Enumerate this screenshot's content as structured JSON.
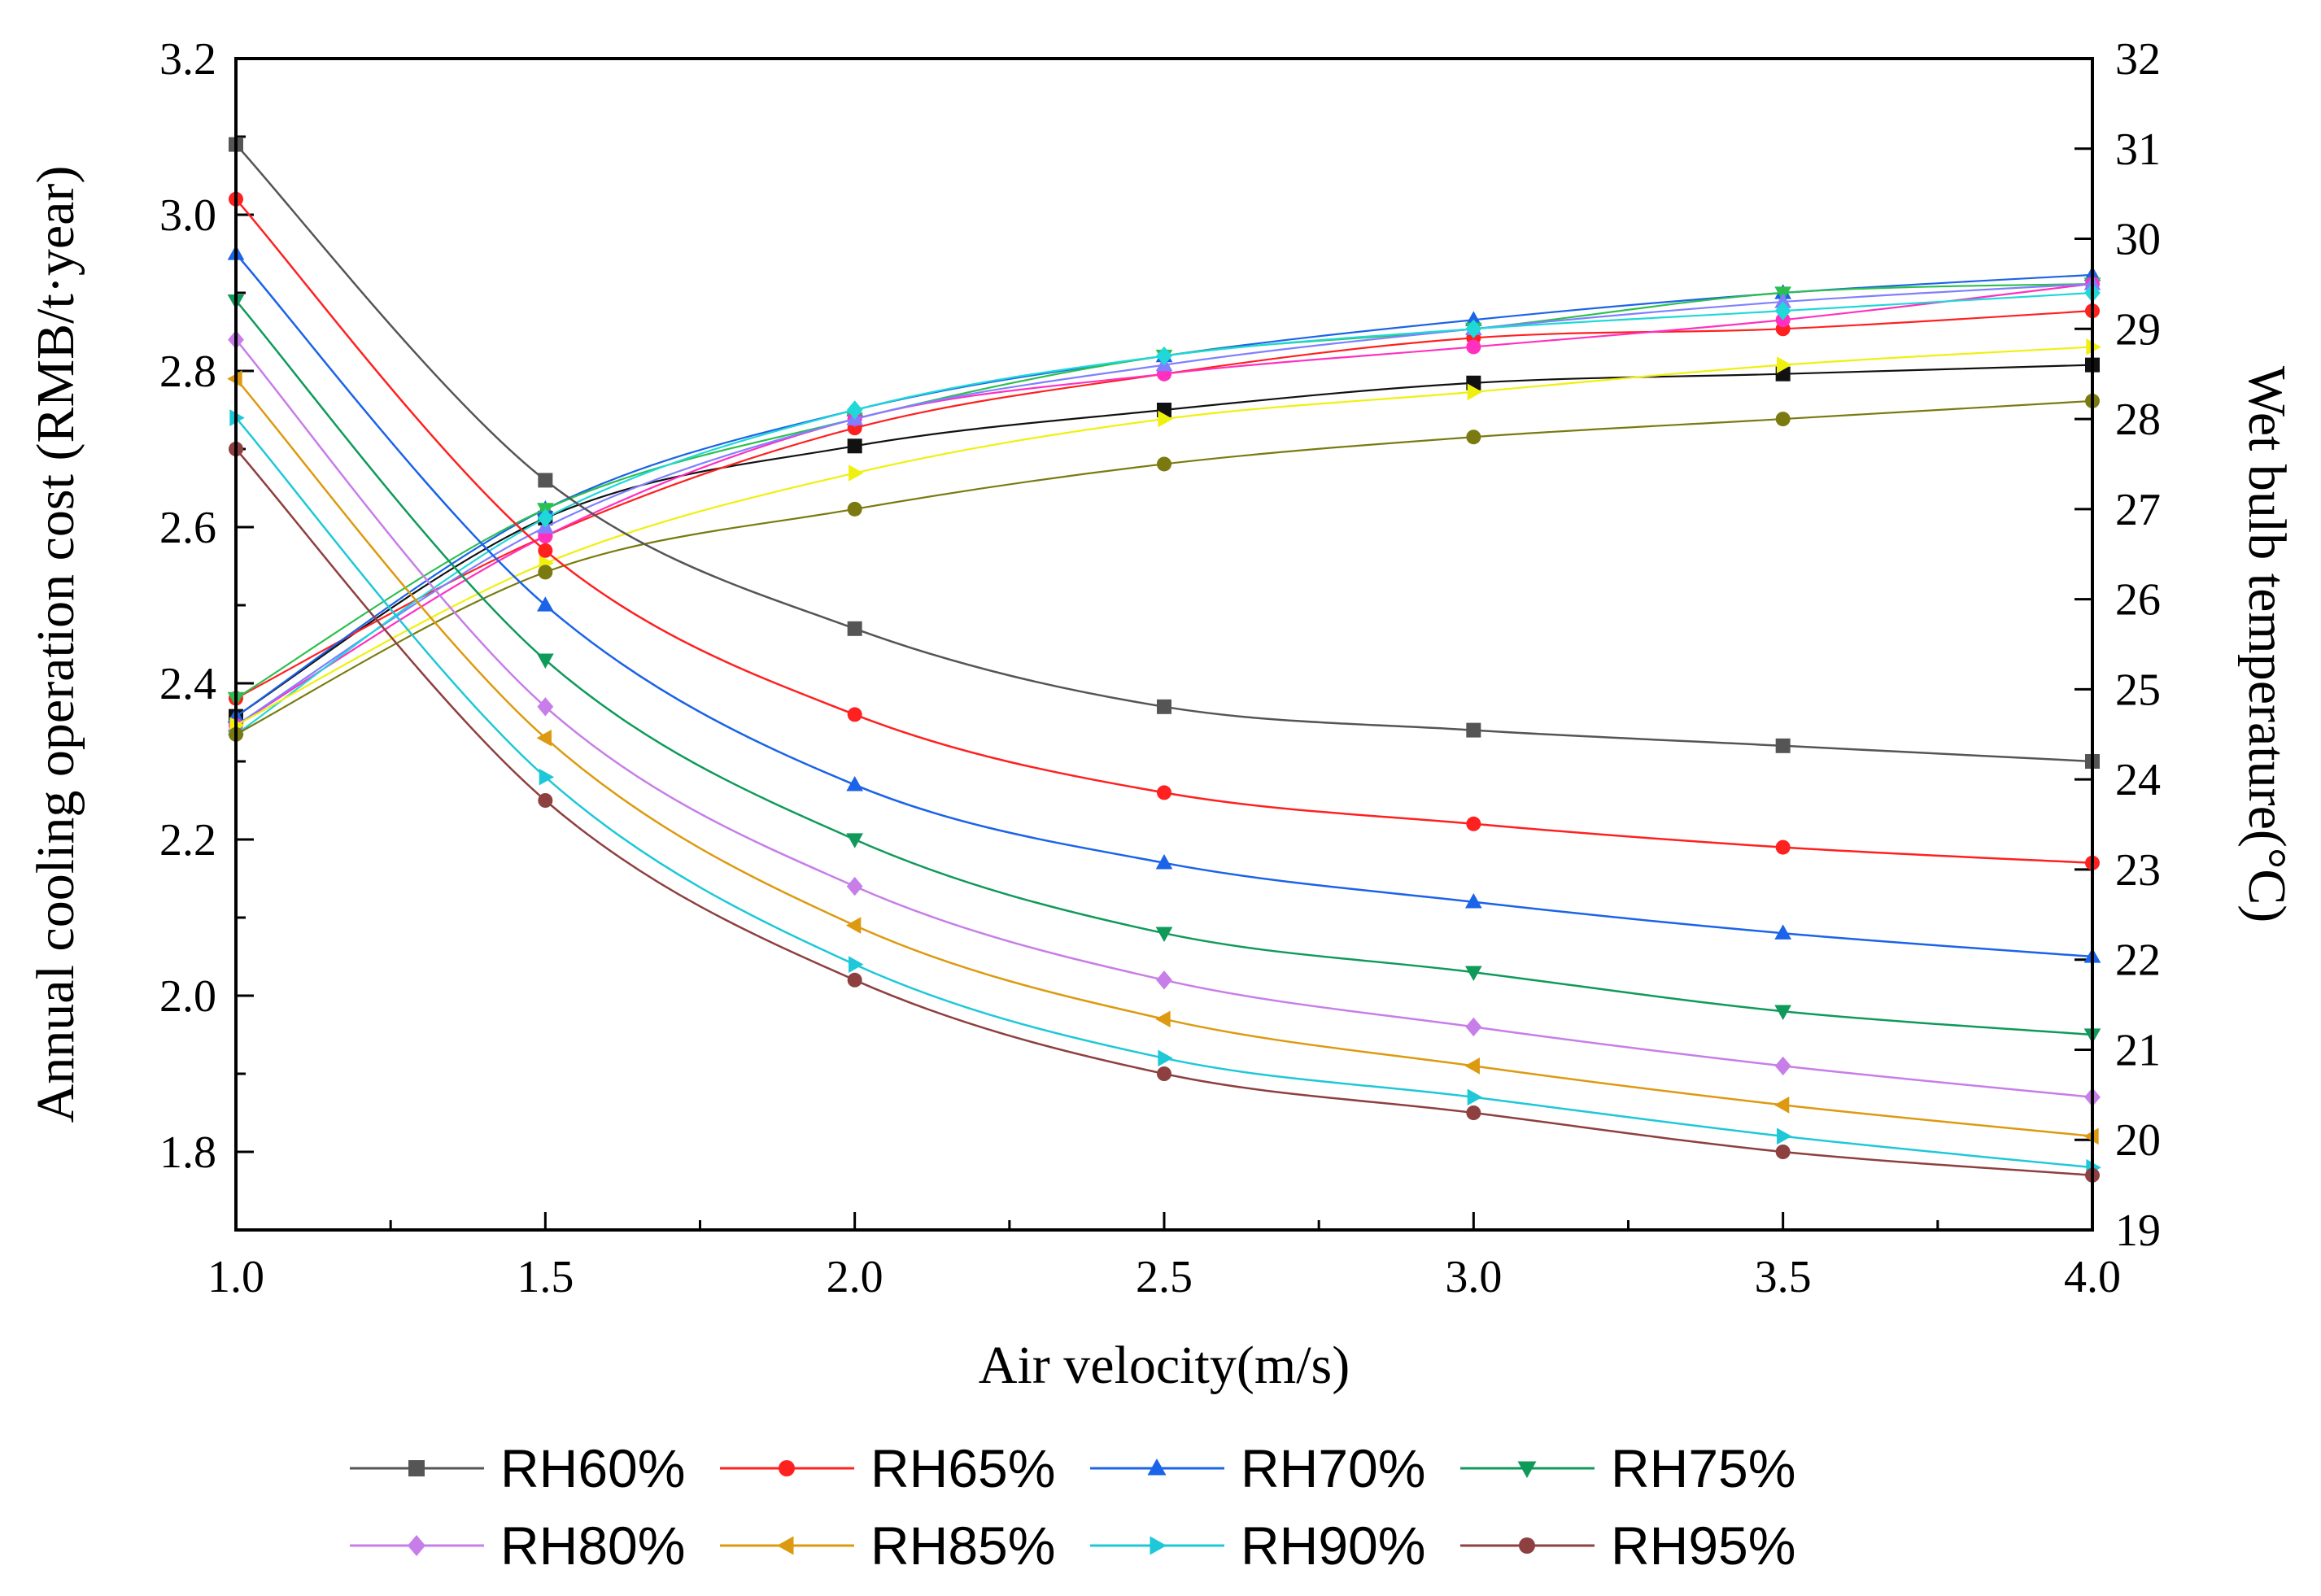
{
  "chart_data": {
    "type": "line",
    "title": "",
    "xlabel": "Air velocity(m/s)",
    "ylabel_left": "Annual cooling operation cost (RMB/t·year)",
    "ylabel_right": "Wet bulb temperature(°C)",
    "xlim": [
      1.0,
      4.0
    ],
    "ylim_left": [
      1.7,
      3.2
    ],
    "ylim_right": [
      19,
      32
    ],
    "x_ticks": [
      "1.0",
      "1.5",
      "2.0",
      "2.5",
      "3.0",
      "3.5",
      "4.0"
    ],
    "y_left_ticks": [
      "1.8",
      "2.0",
      "2.2",
      "2.4",
      "2.6",
      "2.8",
      "3.0",
      "3.2"
    ],
    "y_right_ticks": [
      "19",
      "20",
      "21",
      "22",
      "23",
      "24",
      "25",
      "26",
      "27",
      "28",
      "29",
      "30",
      "31",
      "32"
    ],
    "x": [
      1.0,
      1.5,
      2.0,
      2.5,
      3.0,
      3.5,
      4.0
    ],
    "cost_series": [
      {
        "name": "RH60%",
        "color": "#555555",
        "marker": "square",
        "values": [
          3.09,
          2.66,
          2.47,
          2.37,
          2.34,
          2.32,
          2.3
        ]
      },
      {
        "name": "RH65%",
        "color": "#ff2020",
        "marker": "circle",
        "values": [
          3.02,
          2.57,
          2.36,
          2.26,
          2.22,
          2.19,
          2.17
        ]
      },
      {
        "name": "RH70%",
        "color": "#1b63e8",
        "marker": "triangle-up",
        "values": [
          2.95,
          2.5,
          2.27,
          2.17,
          2.12,
          2.08,
          2.05
        ]
      },
      {
        "name": "RH75%",
        "color": "#0f9a5a",
        "marker": "triangle-down",
        "values": [
          2.89,
          2.43,
          2.2,
          2.08,
          2.03,
          1.98,
          1.95
        ]
      },
      {
        "name": "RH80%",
        "color": "#c77ee8",
        "marker": "diamond",
        "values": [
          2.84,
          2.37,
          2.14,
          2.02,
          1.96,
          1.91,
          1.87
        ]
      },
      {
        "name": "RH85%",
        "color": "#dd9a10",
        "marker": "triangle-left",
        "values": [
          2.79,
          2.33,
          2.09,
          1.97,
          1.91,
          1.86,
          1.82
        ]
      },
      {
        "name": "RH90%",
        "color": "#1ec8d8",
        "marker": "triangle-right",
        "values": [
          2.74,
          2.28,
          2.04,
          1.92,
          1.87,
          1.82,
          1.78
        ]
      },
      {
        "name": "RH95%",
        "color": "#8e4040",
        "marker": "circle",
        "values": [
          2.7,
          2.25,
          2.02,
          1.9,
          1.85,
          1.8,
          1.77
        ]
      }
    ],
    "wet_bulb_series": [
      {
        "color": "#111111",
        "marker": "square",
        "values": [
          24.7,
          26.9,
          27.7,
          28.1,
          28.4,
          28.5,
          28.6
        ]
      },
      {
        "color": "#ff2020",
        "marker": "circle",
        "values": [
          24.9,
          26.7,
          27.9,
          28.5,
          28.9,
          29.0,
          29.2
        ]
      },
      {
        "color": "#1b63e8",
        "marker": "triangle-up",
        "values": [
          24.7,
          27.0,
          28.1,
          28.7,
          29.1,
          29.4,
          29.6
        ]
      },
      {
        "color": "#2bbf50",
        "marker": "triangle-down",
        "values": [
          24.9,
          27.0,
          28.0,
          28.7,
          29.0,
          29.4,
          29.5
        ]
      },
      {
        "color": "#ff30c0",
        "marker": "circle",
        "values": [
          24.6,
          26.7,
          28.0,
          28.5,
          28.8,
          29.1,
          29.5
        ]
      },
      {
        "color": "#8080ff",
        "marker": "triangle-up",
        "values": [
          24.6,
          26.8,
          28.0,
          28.6,
          29.0,
          29.3,
          29.5
        ]
      },
      {
        "color": "#20d8d8",
        "marker": "diamond",
        "values": [
          24.5,
          26.9,
          28.1,
          28.7,
          29.0,
          29.2,
          29.4
        ]
      },
      {
        "color": "#f0f010",
        "marker": "triangle-right",
        "values": [
          24.6,
          26.4,
          27.4,
          28.0,
          28.3,
          28.6,
          28.8
        ]
      },
      {
        "color": "#7a7a10",
        "marker": "circle",
        "values": [
          24.5,
          26.3,
          27.0,
          27.5,
          27.8,
          28.0,
          28.2
        ]
      }
    ]
  }
}
